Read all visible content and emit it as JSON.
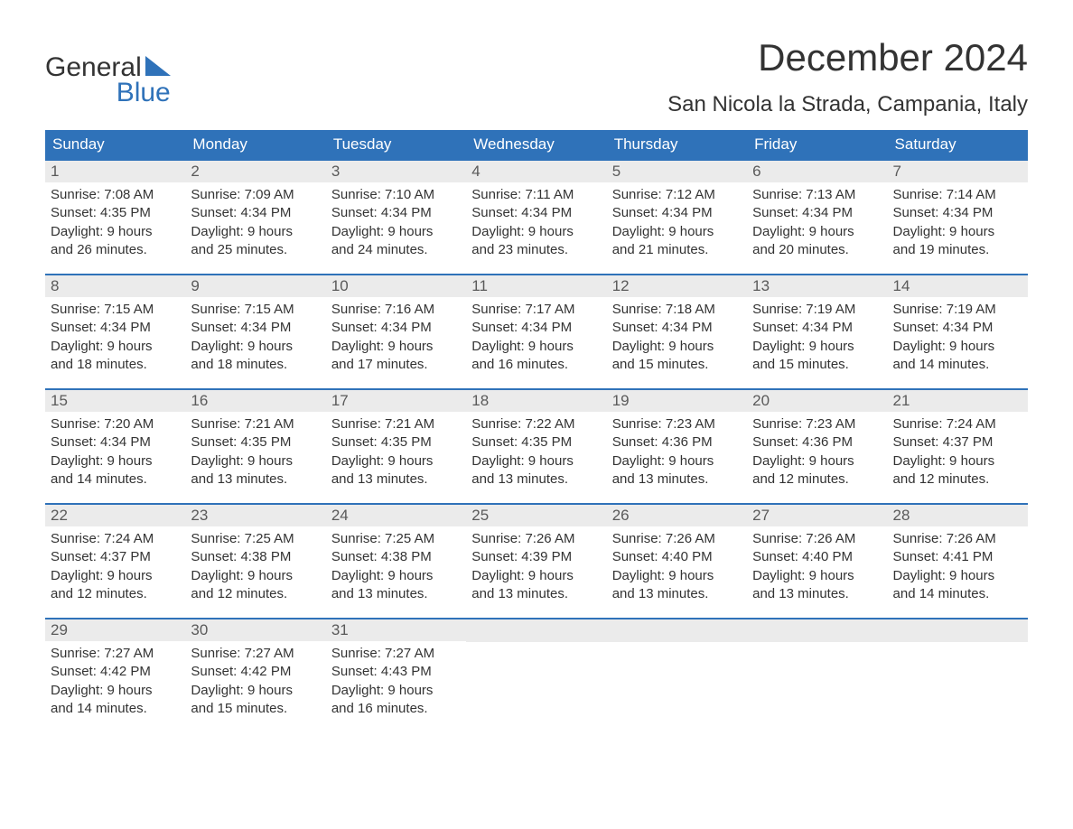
{
  "brand": {
    "general": "General",
    "blue": "Blue"
  },
  "title": "December 2024",
  "location": "San Nicola la Strada, Campania, Italy",
  "colors": {
    "header_bg": "#2f72b9",
    "header_text": "#ffffff",
    "daynum_bg": "#ebebeb",
    "daynum_text": "#5a5a5a",
    "body_text": "#333333",
    "row_border": "#2f72b9",
    "page_bg": "#ffffff"
  },
  "daysOfWeek": [
    "Sunday",
    "Monday",
    "Tuesday",
    "Wednesday",
    "Thursday",
    "Friday",
    "Saturday"
  ],
  "font": {
    "family": "Arial",
    "title_size_pt": 32,
    "location_size_pt": 18,
    "dow_size_pt": 13,
    "body_size_pt": 11
  },
  "weeks": [
    [
      {
        "n": "1",
        "sunrise": "Sunrise: 7:08 AM",
        "sunset": "Sunset: 4:35 PM",
        "d1": "Daylight: 9 hours",
        "d2": "and 26 minutes."
      },
      {
        "n": "2",
        "sunrise": "Sunrise: 7:09 AM",
        "sunset": "Sunset: 4:34 PM",
        "d1": "Daylight: 9 hours",
        "d2": "and 25 minutes."
      },
      {
        "n": "3",
        "sunrise": "Sunrise: 7:10 AM",
        "sunset": "Sunset: 4:34 PM",
        "d1": "Daylight: 9 hours",
        "d2": "and 24 minutes."
      },
      {
        "n": "4",
        "sunrise": "Sunrise: 7:11 AM",
        "sunset": "Sunset: 4:34 PM",
        "d1": "Daylight: 9 hours",
        "d2": "and 23 minutes."
      },
      {
        "n": "5",
        "sunrise": "Sunrise: 7:12 AM",
        "sunset": "Sunset: 4:34 PM",
        "d1": "Daylight: 9 hours",
        "d2": "and 21 minutes."
      },
      {
        "n": "6",
        "sunrise": "Sunrise: 7:13 AM",
        "sunset": "Sunset: 4:34 PM",
        "d1": "Daylight: 9 hours",
        "d2": "and 20 minutes."
      },
      {
        "n": "7",
        "sunrise": "Sunrise: 7:14 AM",
        "sunset": "Sunset: 4:34 PM",
        "d1": "Daylight: 9 hours",
        "d2": "and 19 minutes."
      }
    ],
    [
      {
        "n": "8",
        "sunrise": "Sunrise: 7:15 AM",
        "sunset": "Sunset: 4:34 PM",
        "d1": "Daylight: 9 hours",
        "d2": "and 18 minutes."
      },
      {
        "n": "9",
        "sunrise": "Sunrise: 7:15 AM",
        "sunset": "Sunset: 4:34 PM",
        "d1": "Daylight: 9 hours",
        "d2": "and 18 minutes."
      },
      {
        "n": "10",
        "sunrise": "Sunrise: 7:16 AM",
        "sunset": "Sunset: 4:34 PM",
        "d1": "Daylight: 9 hours",
        "d2": "and 17 minutes."
      },
      {
        "n": "11",
        "sunrise": "Sunrise: 7:17 AM",
        "sunset": "Sunset: 4:34 PM",
        "d1": "Daylight: 9 hours",
        "d2": "and 16 minutes."
      },
      {
        "n": "12",
        "sunrise": "Sunrise: 7:18 AM",
        "sunset": "Sunset: 4:34 PM",
        "d1": "Daylight: 9 hours",
        "d2": "and 15 minutes."
      },
      {
        "n": "13",
        "sunrise": "Sunrise: 7:19 AM",
        "sunset": "Sunset: 4:34 PM",
        "d1": "Daylight: 9 hours",
        "d2": "and 15 minutes."
      },
      {
        "n": "14",
        "sunrise": "Sunrise: 7:19 AM",
        "sunset": "Sunset: 4:34 PM",
        "d1": "Daylight: 9 hours",
        "d2": "and 14 minutes."
      }
    ],
    [
      {
        "n": "15",
        "sunrise": "Sunrise: 7:20 AM",
        "sunset": "Sunset: 4:34 PM",
        "d1": "Daylight: 9 hours",
        "d2": "and 14 minutes."
      },
      {
        "n": "16",
        "sunrise": "Sunrise: 7:21 AM",
        "sunset": "Sunset: 4:35 PM",
        "d1": "Daylight: 9 hours",
        "d2": "and 13 minutes."
      },
      {
        "n": "17",
        "sunrise": "Sunrise: 7:21 AM",
        "sunset": "Sunset: 4:35 PM",
        "d1": "Daylight: 9 hours",
        "d2": "and 13 minutes."
      },
      {
        "n": "18",
        "sunrise": "Sunrise: 7:22 AM",
        "sunset": "Sunset: 4:35 PM",
        "d1": "Daylight: 9 hours",
        "d2": "and 13 minutes."
      },
      {
        "n": "19",
        "sunrise": "Sunrise: 7:23 AM",
        "sunset": "Sunset: 4:36 PM",
        "d1": "Daylight: 9 hours",
        "d2": "and 13 minutes."
      },
      {
        "n": "20",
        "sunrise": "Sunrise: 7:23 AM",
        "sunset": "Sunset: 4:36 PM",
        "d1": "Daylight: 9 hours",
        "d2": "and 12 minutes."
      },
      {
        "n": "21",
        "sunrise": "Sunrise: 7:24 AM",
        "sunset": "Sunset: 4:37 PM",
        "d1": "Daylight: 9 hours",
        "d2": "and 12 minutes."
      }
    ],
    [
      {
        "n": "22",
        "sunrise": "Sunrise: 7:24 AM",
        "sunset": "Sunset: 4:37 PM",
        "d1": "Daylight: 9 hours",
        "d2": "and 12 minutes."
      },
      {
        "n": "23",
        "sunrise": "Sunrise: 7:25 AM",
        "sunset": "Sunset: 4:38 PM",
        "d1": "Daylight: 9 hours",
        "d2": "and 12 minutes."
      },
      {
        "n": "24",
        "sunrise": "Sunrise: 7:25 AM",
        "sunset": "Sunset: 4:38 PM",
        "d1": "Daylight: 9 hours",
        "d2": "and 13 minutes."
      },
      {
        "n": "25",
        "sunrise": "Sunrise: 7:26 AM",
        "sunset": "Sunset: 4:39 PM",
        "d1": "Daylight: 9 hours",
        "d2": "and 13 minutes."
      },
      {
        "n": "26",
        "sunrise": "Sunrise: 7:26 AM",
        "sunset": "Sunset: 4:40 PM",
        "d1": "Daylight: 9 hours",
        "d2": "and 13 minutes."
      },
      {
        "n": "27",
        "sunrise": "Sunrise: 7:26 AM",
        "sunset": "Sunset: 4:40 PM",
        "d1": "Daylight: 9 hours",
        "d2": "and 13 minutes."
      },
      {
        "n": "28",
        "sunrise": "Sunrise: 7:26 AM",
        "sunset": "Sunset: 4:41 PM",
        "d1": "Daylight: 9 hours",
        "d2": "and 14 minutes."
      }
    ],
    [
      {
        "n": "29",
        "sunrise": "Sunrise: 7:27 AM",
        "sunset": "Sunset: 4:42 PM",
        "d1": "Daylight: 9 hours",
        "d2": "and 14 minutes."
      },
      {
        "n": "30",
        "sunrise": "Sunrise: 7:27 AM",
        "sunset": "Sunset: 4:42 PM",
        "d1": "Daylight: 9 hours",
        "d2": "and 15 minutes."
      },
      {
        "n": "31",
        "sunrise": "Sunrise: 7:27 AM",
        "sunset": "Sunset: 4:43 PM",
        "d1": "Daylight: 9 hours",
        "d2": "and 16 minutes."
      },
      null,
      null,
      null,
      null
    ]
  ]
}
